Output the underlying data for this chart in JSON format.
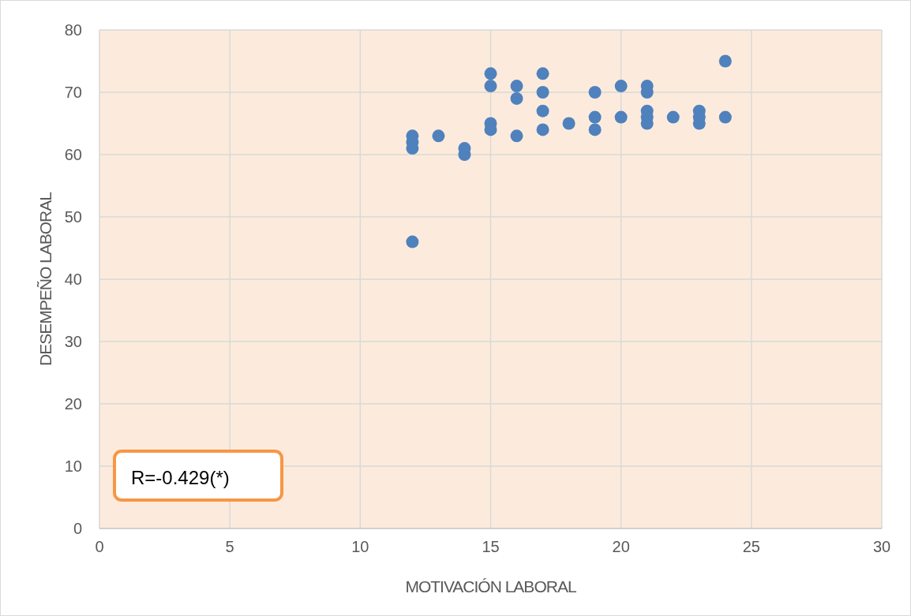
{
  "chart_data": {
    "type": "scatter",
    "xlabel": "MOTIVACIÓN LABORAL",
    "ylabel": "DESEMPEÑO LABORAL",
    "x": [
      12,
      12,
      12,
      12,
      13,
      14,
      14,
      15,
      15,
      15,
      15,
      16,
      16,
      16,
      17,
      17,
      17,
      17,
      18,
      19,
      19,
      19,
      20,
      20,
      21,
      21,
      21,
      21,
      21,
      22,
      23,
      23,
      23,
      24,
      24
    ],
    "series": [
      {
        "color": "#4f81bd",
        "values": [
          63,
          62,
          61,
          46,
          63,
          61,
          60,
          73,
          71,
          65,
          64,
          71,
          69,
          63,
          73,
          70,
          67,
          64,
          65,
          70,
          66,
          64,
          71,
          66,
          71,
          70,
          67,
          66,
          65,
          66,
          67,
          66,
          65,
          75,
          66
        ]
      }
    ],
    "xlim": [
      0,
      30
    ],
    "xticks": [
      0,
      5,
      10,
      15,
      20,
      25,
      30
    ],
    "ylim": [
      0,
      80
    ],
    "yticks": [
      0,
      10,
      20,
      30,
      40,
      50,
      60,
      70,
      80
    ],
    "grid": true,
    "marker": "circle",
    "annotations": [
      "R=-0.429(*)"
    ]
  }
}
